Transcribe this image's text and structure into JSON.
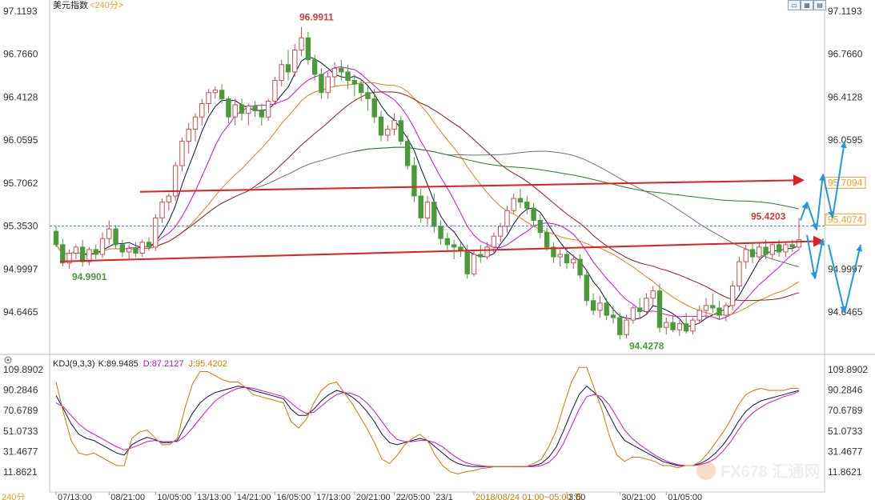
{
  "chart_data": [
    {
      "type": "candlestick",
      "title": "美元指数",
      "timeframe": "240分",
      "price_ticks": [
        "97.1193",
        "96.7660",
        "96.4128",
        "96.0595",
        "95.7062",
        "95.3530",
        "94.9997",
        "94.6465"
      ],
      "right_ticks": [
        "97.1193",
        "96.7660",
        "96.4128",
        "96.0595",
        "95.7094",
        "95.4074",
        "94.9997",
        "94.6465"
      ],
      "ylim": [
        94.4,
        97.12
      ],
      "annotations": {
        "high": "96.9911",
        "low_left": "94.9901",
        "low": "94.4278",
        "last": "95.4203"
      },
      "current_price": "95.4074",
      "candles": [
        [
          95.31,
          95.35,
          95.18,
          95.2
        ],
        [
          95.2,
          95.25,
          95.02,
          95.05
        ],
        [
          95.05,
          95.16,
          95.0,
          95.13
        ],
        [
          95.13,
          95.2,
          95.08,
          95.18
        ],
        [
          95.18,
          95.24,
          95.02,
          95.06
        ],
        [
          95.06,
          95.18,
          95.03,
          95.16
        ],
        [
          95.16,
          95.2,
          95.08,
          95.12
        ],
        [
          95.12,
          95.3,
          95.09,
          95.25
        ],
        [
          95.25,
          95.4,
          95.2,
          95.33
        ],
        [
          95.33,
          95.36,
          95.17,
          95.2
        ],
        [
          95.2,
          95.24,
          95.1,
          95.14
        ],
        [
          95.14,
          95.2,
          95.08,
          95.17
        ],
        [
          95.17,
          95.22,
          95.1,
          95.13
        ],
        [
          95.13,
          95.24,
          95.1,
          95.22
        ],
        [
          95.22,
          95.26,
          95.15,
          95.18
        ],
        [
          95.18,
          95.45,
          95.15,
          95.42
        ],
        [
          95.42,
          95.58,
          95.38,
          95.55
        ],
        [
          95.55,
          95.62,
          95.48,
          95.6
        ],
        [
          95.6,
          95.88,
          95.56,
          95.85
        ],
        [
          95.85,
          96.08,
          95.8,
          96.05
        ],
        [
          96.05,
          96.2,
          95.95,
          96.15
        ],
        [
          96.15,
          96.28,
          96.05,
          96.25
        ],
        [
          96.25,
          96.4,
          96.18,
          96.36
        ],
        [
          96.36,
          96.48,
          96.28,
          96.45
        ],
        [
          96.45,
          96.5,
          96.4,
          96.47
        ],
        [
          96.47,
          96.52,
          96.36,
          96.4
        ],
        [
          96.4,
          96.42,
          96.2,
          96.25
        ],
        [
          96.25,
          96.4,
          96.18,
          96.35
        ],
        [
          96.35,
          96.4,
          96.22,
          96.28
        ],
        [
          96.28,
          96.36,
          96.18,
          96.34
        ],
        [
          96.34,
          96.38,
          96.25,
          96.3
        ],
        [
          96.3,
          96.36,
          96.18,
          96.25
        ],
        [
          96.25,
          96.4,
          96.22,
          96.38
        ],
        [
          96.38,
          96.58,
          96.35,
          96.55
        ],
        [
          96.55,
          96.72,
          96.5,
          96.68
        ],
        [
          96.68,
          96.8,
          96.55,
          96.62
        ],
        [
          96.62,
          96.85,
          96.58,
          96.8
        ],
        [
          96.8,
          96.99,
          96.75,
          96.9
        ],
        [
          96.9,
          96.95,
          96.68,
          96.72
        ],
        [
          96.72,
          96.76,
          96.55,
          96.6
        ],
        [
          96.6,
          96.65,
          96.4,
          96.45
        ],
        [
          96.45,
          96.62,
          96.4,
          96.58
        ],
        [
          96.58,
          96.7,
          96.5,
          96.65
        ],
        [
          96.65,
          96.72,
          96.55,
          96.62
        ],
        [
          96.62,
          96.68,
          96.48,
          96.55
        ],
        [
          96.55,
          96.6,
          96.42,
          96.52
        ],
        [
          96.52,
          96.56,
          96.38,
          96.45
        ],
        [
          96.45,
          96.5,
          96.3,
          96.4
        ],
        [
          96.4,
          96.48,
          96.2,
          96.25
        ],
        [
          96.25,
          96.3,
          96.05,
          96.1
        ],
        [
          96.1,
          96.18,
          96.05,
          96.15
        ],
        [
          96.15,
          96.28,
          96.1,
          96.22
        ],
        [
          96.22,
          96.26,
          96.02,
          96.05
        ],
        [
          96.05,
          96.1,
          95.82,
          95.85
        ],
        [
          95.85,
          95.92,
          95.55,
          95.6
        ],
        [
          95.6,
          95.66,
          95.38,
          95.42
        ],
        [
          95.42,
          95.6,
          95.36,
          95.55
        ],
        [
          95.55,
          95.62,
          95.3,
          95.35
        ],
        [
          95.35,
          95.4,
          95.2,
          95.25
        ],
        [
          95.25,
          95.3,
          95.15,
          95.2
        ],
        [
          95.2,
          95.24,
          95.08,
          95.18
        ],
        [
          95.18,
          95.22,
          95.1,
          95.15
        ],
        [
          95.15,
          95.2,
          94.92,
          94.96
        ],
        [
          94.96,
          95.15,
          94.94,
          95.12
        ],
        [
          95.12,
          95.2,
          95.05,
          95.1
        ],
        [
          95.1,
          95.22,
          95.08,
          95.18
        ],
        [
          95.18,
          95.3,
          95.12,
          95.27
        ],
        [
          95.27,
          95.38,
          95.22,
          95.35
        ],
        [
          95.35,
          95.52,
          95.3,
          95.48
        ],
        [
          95.48,
          95.62,
          95.45,
          95.58
        ],
        [
          95.58,
          95.66,
          95.5,
          95.55
        ],
        [
          95.55,
          95.6,
          95.45,
          95.5
        ],
        [
          95.5,
          95.54,
          95.35,
          95.4
        ],
        [
          95.4,
          95.45,
          95.25,
          95.3
        ],
        [
          95.3,
          95.34,
          95.15,
          95.18
        ],
        [
          95.18,
          95.22,
          95.05,
          95.1
        ],
        [
          95.1,
          95.16,
          95.02,
          95.12
        ],
        [
          95.12,
          95.18,
          95.0,
          95.05
        ],
        [
          95.05,
          95.12,
          95.0,
          95.08
        ],
        [
          95.08,
          95.12,
          94.92,
          94.95
        ],
        [
          94.95,
          95.0,
          94.7,
          94.74
        ],
        [
          94.74,
          94.8,
          94.62,
          94.66
        ],
        [
          94.66,
          94.78,
          94.6,
          94.72
        ],
        [
          94.72,
          94.76,
          94.58,
          94.62
        ],
        [
          94.62,
          94.7,
          94.55,
          94.6
        ],
        [
          94.6,
          94.64,
          94.42,
          94.46
        ],
        [
          94.46,
          94.62,
          94.43,
          94.58
        ],
        [
          94.58,
          94.7,
          94.55,
          94.68
        ],
        [
          94.68,
          94.76,
          94.6,
          94.65
        ],
        [
          94.65,
          94.8,
          94.62,
          94.76
        ],
        [
          94.76,
          94.86,
          94.7,
          94.82
        ],
        [
          94.82,
          94.88,
          94.48,
          94.52
        ],
        [
          94.52,
          94.6,
          94.46,
          94.56
        ],
        [
          94.56,
          94.62,
          94.48,
          94.5
        ],
        [
          94.5,
          94.58,
          94.45,
          94.55
        ],
        [
          94.55,
          94.64,
          94.47,
          94.49
        ],
        [
          94.49,
          94.6,
          94.46,
          94.58
        ],
        [
          94.58,
          94.7,
          94.55,
          94.66
        ],
        [
          94.66,
          94.76,
          94.6,
          94.7
        ],
        [
          94.7,
          94.8,
          94.64,
          94.68
        ],
        [
          94.68,
          94.74,
          94.58,
          94.62
        ],
        [
          94.62,
          94.72,
          94.57,
          94.7
        ],
        [
          94.7,
          94.9,
          94.66,
          94.86
        ],
        [
          94.86,
          95.1,
          94.82,
          95.06
        ],
        [
          95.06,
          95.2,
          95.0,
          95.16
        ],
        [
          95.16,
          95.22,
          95.05,
          95.1
        ],
        [
          95.1,
          95.22,
          95.06,
          95.18
        ],
        [
          95.18,
          95.24,
          95.08,
          95.12
        ],
        [
          95.12,
          95.22,
          95.08,
          95.2
        ],
        [
          95.2,
          95.24,
          95.1,
          95.14
        ],
        [
          95.14,
          95.22,
          95.1,
          95.2
        ],
        [
          95.2,
          95.24,
          95.14,
          95.18
        ],
        [
          95.18,
          95.42,
          95.16,
          95.24
        ]
      ],
      "x_labels": [
        "07/13:00",
        "08/21:00",
        "10/05:00",
        "13/13:00",
        "14/21:00",
        "16/05:00",
        "17/13:00",
        "20/21:00",
        "22/05:00",
        "23/1",
        "2018/08/24 01:00~05:00 五",
        "3:00",
        "30/21:00",
        "01/05:00"
      ],
      "x_label_index": [
        0,
        8,
        15,
        21,
        27,
        33,
        39,
        45,
        51,
        57,
        63,
        77,
        85,
        92
      ]
    },
    {
      "type": "line",
      "title": "KDJ(9,3,3)",
      "k_label": "K:89.9485",
      "d_label": "D:87.2127",
      "j_label": "J:95.4202",
      "ticks": [
        "109.8902",
        "90.2846",
        "70.6789",
        "51.0733",
        "31.4677",
        "11.8621"
      ],
      "ylim": [
        0,
        115
      ],
      "series": [
        {
          "name": "K",
          "color": "#101050",
          "values": [
            85,
            72,
            58,
            48,
            44,
            42,
            38,
            34,
            30,
            28,
            38,
            42,
            45,
            43,
            40,
            40,
            42,
            55,
            68,
            78,
            84,
            88,
            90,
            92,
            94,
            93,
            90,
            88,
            86,
            84,
            82,
            72,
            66,
            66,
            72,
            80,
            86,
            90,
            88,
            84,
            78,
            70,
            60,
            48,
            40,
            38,
            40,
            42,
            44,
            42,
            36,
            30,
            24,
            20,
            18,
            17,
            17,
            17,
            17,
            17,
            17,
            17,
            17,
            18,
            20,
            26,
            36,
            52,
            70,
            86,
            94,
            88,
            80,
            66,
            52,
            42,
            38,
            34,
            30,
            26,
            22,
            20,
            18,
            18,
            18,
            20,
            24,
            30,
            38,
            48,
            60,
            70,
            76,
            80,
            82,
            84,
            86,
            88,
            90
          ]
        },
        {
          "name": "D",
          "color": "#d010d0",
          "values": [
            78,
            74,
            66,
            58,
            52,
            48,
            44,
            40,
            36,
            33,
            35,
            38,
            41,
            42,
            41,
            41,
            41,
            46,
            54,
            63,
            72,
            80,
            85,
            89,
            92,
            93,
            92,
            90,
            88,
            86,
            84,
            78,
            72,
            68,
            69,
            75,
            81,
            86,
            88,
            87,
            84,
            78,
            70,
            60,
            50,
            43,
            41,
            41,
            42,
            42,
            40,
            36,
            30,
            25,
            21,
            19,
            18,
            17,
            17,
            17,
            17,
            17,
            17,
            17,
            18,
            21,
            28,
            40,
            56,
            72,
            84,
            86,
            84,
            76,
            64,
            52,
            44,
            38,
            33,
            28,
            24,
            21,
            19,
            18,
            18,
            19,
            21,
            25,
            32,
            41,
            52,
            62,
            69,
            74,
            78,
            81,
            84,
            86,
            89
          ]
        },
        {
          "name": "J",
          "color": "#d07800",
          "values": [
            98,
            68,
            42,
            30,
            28,
            30,
            26,
            22,
            18,
            18,
            44,
            50,
            52,
            45,
            38,
            38,
            44,
            73,
            96,
            108,
            108,
            104,
            100,
            98,
            98,
            93,
            86,
            84,
            82,
            80,
            78,
            60,
            54,
            62,
            78,
            90,
            96,
            98,
            88,
            78,
            66,
            54,
            40,
            24,
            20,
            28,
            38,
            44,
            48,
            42,
            28,
            18,
            12,
            10,
            12,
            13,
            15,
            16,
            17,
            17,
            17,
            17,
            17,
            20,
            24,
            36,
            52,
            76,
            98,
            112,
            112,
            92,
            72,
            46,
            28,
            22,
            26,
            26,
            24,
            22,
            18,
            18,
            16,
            18,
            18,
            22,
            30,
            40,
            50,
            62,
            76,
            86,
            90,
            92,
            90,
            90,
            90,
            92,
            92
          ]
        }
      ]
    }
  ],
  "watermark": "FX678 汇通网"
}
